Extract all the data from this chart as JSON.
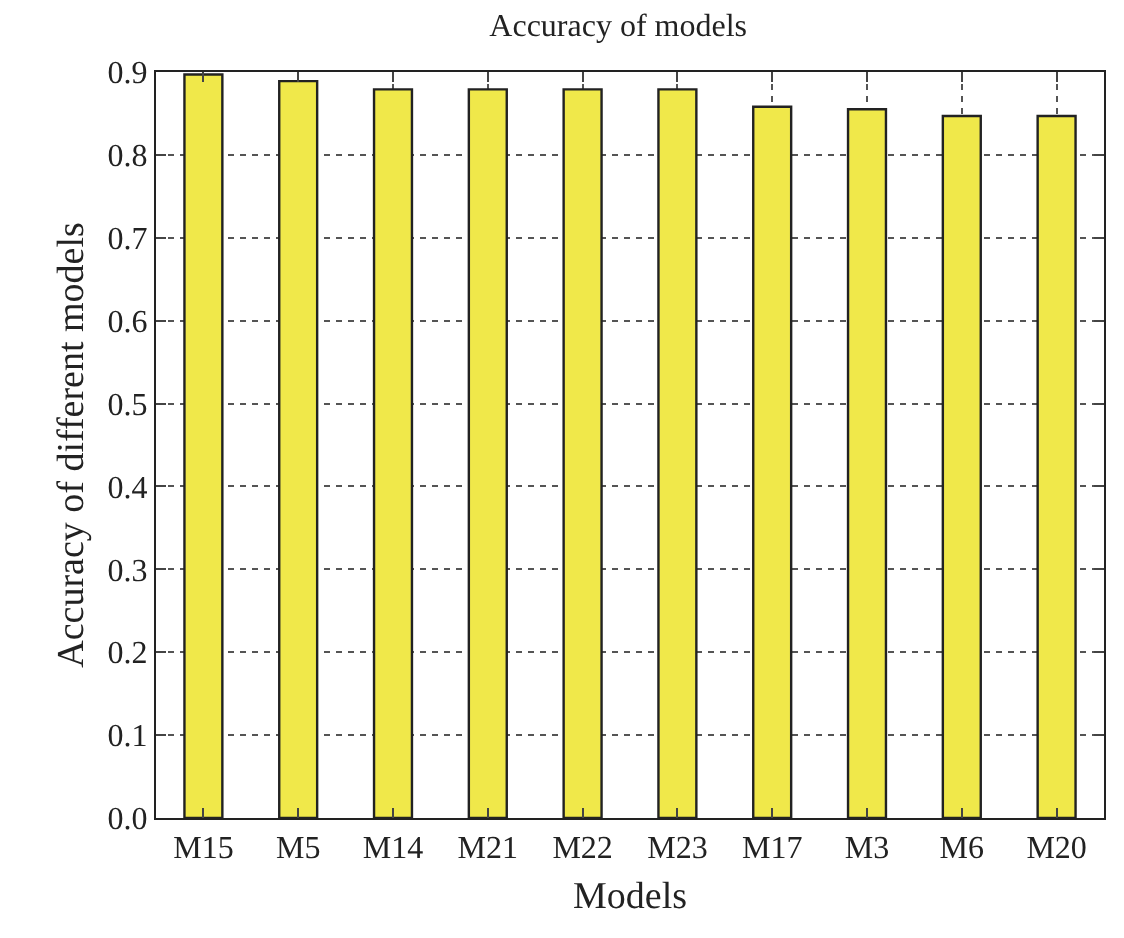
{
  "chart_data": {
    "type": "bar",
    "title": "Accuracy of models",
    "xlabel": "Models",
    "ylabel": "Accuracy of different models",
    "categories": [
      "M15",
      "M5",
      "M14",
      "M21",
      "M22",
      "M23",
      "M17",
      "M3",
      "M6",
      "M20"
    ],
    "values": [
      0.897,
      0.889,
      0.879,
      0.879,
      0.879,
      0.879,
      0.858,
      0.855,
      0.847,
      0.847
    ],
    "color": "#f0e84a",
    "ylim": [
      0,
      0.9
    ],
    "yticks": [
      {
        "value": 0,
        "label": "0.0"
      },
      0.1,
      0.2,
      0.3,
      0.4,
      0.5,
      0.6,
      0.7,
      0.8,
      0.9
    ],
    "grid": true
  }
}
